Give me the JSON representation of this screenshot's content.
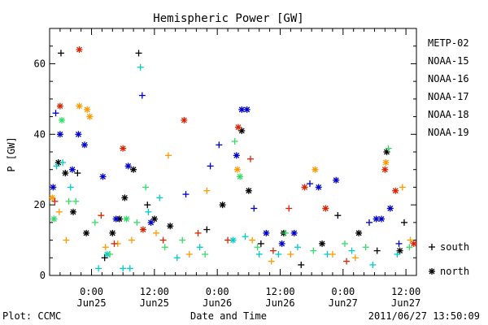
{
  "chart_data": {
    "type": "scatter",
    "title": "Hemispheric Power [GW]",
    "ylabel": "P [GW]",
    "xlabel": "Date and Time",
    "footer_left": "Plot: CCMC",
    "footer_right": "2011/06/27 13:50:09",
    "ylim": [
      0,
      70
    ],
    "yticks": [
      0,
      20,
      40,
      60
    ],
    "xlim": [
      "2011-06-24T16:00",
      "2011-06-27T14:00"
    ],
    "xticks": [
      {
        "t": "2011-06-25T00:00",
        "line1": "0:00",
        "line2": "Jun25"
      },
      {
        "t": "2011-06-25T12:00",
        "line1": "12:00",
        "line2": "Jun25"
      },
      {
        "t": "2011-06-26T00:00",
        "line1": "0:00",
        "line2": "Jun26"
      },
      {
        "t": "2011-06-26T12:00",
        "line1": "12:00",
        "line2": "Jun26"
      },
      {
        "t": "2011-06-27T00:00",
        "line1": "0:00",
        "line2": "Jun27"
      },
      {
        "t": "2011-06-27T12:00",
        "line1": "12:00",
        "line2": "Jun27"
      }
    ],
    "marker_legend": [
      {
        "marker": "plus",
        "label": "south"
      },
      {
        "marker": "star",
        "label": "north"
      }
    ],
    "series": [
      {
        "name": "METP-02",
        "color": "#000000",
        "points": [
          {
            "x": "2011-06-24T17:40",
            "y": 32,
            "m": "star"
          },
          {
            "x": "2011-06-24T18:10",
            "y": 63,
            "m": "plus"
          },
          {
            "x": "2011-06-24T19:00",
            "y": 29,
            "m": "star"
          },
          {
            "x": "2011-06-24T20:30",
            "y": 18,
            "m": "star"
          },
          {
            "x": "2011-06-24T21:20",
            "y": 29,
            "m": "plus"
          },
          {
            "x": "2011-06-24T23:00",
            "y": 12,
            "m": "star"
          },
          {
            "x": "2011-06-25T02:30",
            "y": 5,
            "m": "plus"
          },
          {
            "x": "2011-06-25T04:00",
            "y": 12,
            "m": "star"
          },
          {
            "x": "2011-06-25T05:20",
            "y": 16,
            "m": "star"
          },
          {
            "x": "2011-06-25T06:20",
            "y": 22,
            "m": "star"
          },
          {
            "x": "2011-06-25T08:00",
            "y": 30,
            "m": "star"
          },
          {
            "x": "2011-06-25T09:00",
            "y": 63,
            "m": "plus"
          },
          {
            "x": "2011-06-25T10:40",
            "y": 20,
            "m": "plus"
          },
          {
            "x": "2011-06-25T12:00",
            "y": 16,
            "m": "star"
          },
          {
            "x": "2011-06-25T15:00",
            "y": 14,
            "m": "star"
          },
          {
            "x": "2011-06-25T22:00",
            "y": 13,
            "m": "plus"
          },
          {
            "x": "2011-06-26T01:00",
            "y": 20,
            "m": "star"
          },
          {
            "x": "2011-06-26T04:40",
            "y": 41,
            "m": "star"
          },
          {
            "x": "2011-06-26T06:00",
            "y": 24,
            "m": "star"
          },
          {
            "x": "2011-06-26T08:20",
            "y": 9,
            "m": "plus"
          },
          {
            "x": "2011-06-26T12:40",
            "y": 12,
            "m": "star"
          },
          {
            "x": "2011-06-26T16:00",
            "y": 3,
            "m": "plus"
          },
          {
            "x": "2011-06-26T20:00",
            "y": 9,
            "m": "star"
          },
          {
            "x": "2011-06-26T23:00",
            "y": 17,
            "m": "plus"
          },
          {
            "x": "2011-06-27T03:00",
            "y": 12,
            "m": "star"
          },
          {
            "x": "2011-06-27T06:30",
            "y": 7,
            "m": "plus"
          },
          {
            "x": "2011-06-27T08:20",
            "y": 35,
            "m": "star"
          },
          {
            "x": "2011-06-27T10:50",
            "y": 7,
            "m": "star"
          },
          {
            "x": "2011-06-27T11:40",
            "y": 15,
            "m": "plus"
          }
        ]
      },
      {
        "name": "NOAA-15",
        "color": "#0000cc",
        "points": [
          {
            "x": "2011-06-24T16:40",
            "y": 25,
            "m": "star"
          },
          {
            "x": "2011-06-24T17:10",
            "y": 46,
            "m": "plus"
          },
          {
            "x": "2011-06-24T18:00",
            "y": 40,
            "m": "star"
          },
          {
            "x": "2011-06-24T20:20",
            "y": 30,
            "m": "star"
          },
          {
            "x": "2011-06-24T21:30",
            "y": 40,
            "m": "star"
          },
          {
            "x": "2011-06-24T22:40",
            "y": 37,
            "m": "star"
          },
          {
            "x": "2011-06-25T02:10",
            "y": 28,
            "m": "star"
          },
          {
            "x": "2011-06-25T04:40",
            "y": 16,
            "m": "star"
          },
          {
            "x": "2011-06-25T07:00",
            "y": 31,
            "m": "star"
          },
          {
            "x": "2011-06-25T09:40",
            "y": 51,
            "m": "plus"
          },
          {
            "x": "2011-06-25T11:20",
            "y": 15,
            "m": "star"
          },
          {
            "x": "2011-06-25T18:00",
            "y": 23,
            "m": "plus"
          },
          {
            "x": "2011-06-25T22:40",
            "y": 31,
            "m": "plus"
          },
          {
            "x": "2011-06-26T00:20",
            "y": 37,
            "m": "plus"
          },
          {
            "x": "2011-06-26T03:40",
            "y": 34,
            "m": "star"
          },
          {
            "x": "2011-06-26T04:40",
            "y": 47,
            "m": "star"
          },
          {
            "x": "2011-06-26T05:40",
            "y": 47,
            "m": "star"
          },
          {
            "x": "2011-06-26T07:00",
            "y": 19,
            "m": "plus"
          },
          {
            "x": "2011-06-26T09:20",
            "y": 12,
            "m": "star"
          },
          {
            "x": "2011-06-26T12:20",
            "y": 9,
            "m": "star"
          },
          {
            "x": "2011-06-26T14:40",
            "y": 12,
            "m": "star"
          },
          {
            "x": "2011-06-26T17:40",
            "y": 26,
            "m": "plus"
          },
          {
            "x": "2011-06-26T19:20",
            "y": 25,
            "m": "star"
          },
          {
            "x": "2011-06-26T22:40",
            "y": 27,
            "m": "star"
          },
          {
            "x": "2011-06-27T05:00",
            "y": 15,
            "m": "plus"
          },
          {
            "x": "2011-06-27T06:20",
            "y": 16,
            "m": "star"
          },
          {
            "x": "2011-06-27T07:20",
            "y": 16,
            "m": "star"
          },
          {
            "x": "2011-06-27T09:00",
            "y": 19,
            "m": "star"
          },
          {
            "x": "2011-06-27T10:40",
            "y": 9,
            "m": "plus"
          }
        ]
      },
      {
        "name": "NOAA-16",
        "color": "#00cccc",
        "points": [
          {
            "x": "2011-06-24T17:20",
            "y": 31,
            "m": "plus"
          },
          {
            "x": "2011-06-24T18:30",
            "y": 32,
            "m": "plus"
          },
          {
            "x": "2011-06-24T20:00",
            "y": 25,
            "m": "plus"
          },
          {
            "x": "2011-06-25T01:20",
            "y": 2,
            "m": "plus"
          },
          {
            "x": "2011-06-25T03:00",
            "y": 6,
            "m": "star"
          },
          {
            "x": "2011-06-25T06:00",
            "y": 2,
            "m": "plus"
          },
          {
            "x": "2011-06-25T07:20",
            "y": 2,
            "m": "plus"
          },
          {
            "x": "2011-06-25T09:20",
            "y": 59,
            "m": "plus"
          },
          {
            "x": "2011-06-25T10:50",
            "y": 18,
            "m": "plus"
          },
          {
            "x": "2011-06-25T13:00",
            "y": 22,
            "m": "plus"
          },
          {
            "x": "2011-06-25T16:20",
            "y": 5,
            "m": "plus"
          },
          {
            "x": "2011-06-25T20:40",
            "y": 8,
            "m": "plus"
          },
          {
            "x": "2011-06-26T03:00",
            "y": 10,
            "m": "star"
          },
          {
            "x": "2011-06-26T05:20",
            "y": 11,
            "m": "plus"
          },
          {
            "x": "2011-06-26T08:00",
            "y": 6,
            "m": "plus"
          },
          {
            "x": "2011-06-26T11:40",
            "y": 6,
            "m": "plus"
          },
          {
            "x": "2011-06-26T15:20",
            "y": 8,
            "m": "plus"
          },
          {
            "x": "2011-06-26T21:00",
            "y": 6,
            "m": "plus"
          },
          {
            "x": "2011-06-27T01:40",
            "y": 7,
            "m": "plus"
          },
          {
            "x": "2011-06-27T05:40",
            "y": 3,
            "m": "plus"
          },
          {
            "x": "2011-06-27T10:20",
            "y": 6,
            "m": "plus"
          }
        ]
      },
      {
        "name": "NOAA-17",
        "color": "#33dd66",
        "points": [
          {
            "x": "2011-06-24T16:50",
            "y": 16,
            "m": "star"
          },
          {
            "x": "2011-06-24T18:20",
            "y": 44,
            "m": "star"
          },
          {
            "x": "2011-06-24T19:40",
            "y": 21,
            "m": "plus"
          },
          {
            "x": "2011-06-24T21:00",
            "y": 21,
            "m": "plus"
          },
          {
            "x": "2011-06-25T00:40",
            "y": 15,
            "m": "plus"
          },
          {
            "x": "2011-06-25T03:30",
            "y": 6,
            "m": "plus"
          },
          {
            "x": "2011-06-25T06:40",
            "y": 16,
            "m": "star"
          },
          {
            "x": "2011-06-25T08:40",
            "y": 15,
            "m": "plus"
          },
          {
            "x": "2011-06-25T10:20",
            "y": 25,
            "m": "plus"
          },
          {
            "x": "2011-06-25T14:00",
            "y": 8,
            "m": "plus"
          },
          {
            "x": "2011-06-25T17:20",
            "y": 10,
            "m": "plus"
          },
          {
            "x": "2011-06-25T21:40",
            "y": 6,
            "m": "plus"
          },
          {
            "x": "2011-06-26T03:20",
            "y": 38,
            "m": "plus"
          },
          {
            "x": "2011-06-26T04:20",
            "y": 28,
            "m": "star"
          },
          {
            "x": "2011-06-26T07:40",
            "y": 8,
            "m": "plus"
          },
          {
            "x": "2011-06-26T13:00",
            "y": 12,
            "m": "plus"
          },
          {
            "x": "2011-06-26T18:20",
            "y": 7,
            "m": "plus"
          },
          {
            "x": "2011-06-27T00:20",
            "y": 9,
            "m": "plus"
          },
          {
            "x": "2011-06-27T04:20",
            "y": 8,
            "m": "plus"
          },
          {
            "x": "2011-06-27T08:40",
            "y": 36,
            "m": "plus"
          },
          {
            "x": "2011-06-27T12:40",
            "y": 8,
            "m": "plus"
          }
        ]
      },
      {
        "name": "NOAA-18",
        "color": "#ff9900",
        "points": [
          {
            "x": "2011-06-24T16:30",
            "y": 22,
            "m": "star"
          },
          {
            "x": "2011-06-24T17:50",
            "y": 18,
            "m": "plus"
          },
          {
            "x": "2011-06-24T19:10",
            "y": 10,
            "m": "plus"
          },
          {
            "x": "2011-06-24T21:40",
            "y": 48,
            "m": "star"
          },
          {
            "x": "2011-06-24T23:10",
            "y": 47,
            "m": "star"
          },
          {
            "x": "2011-06-24T23:40",
            "y": 45,
            "m": "star"
          },
          {
            "x": "2011-06-25T02:40",
            "y": 8,
            "m": "plus"
          },
          {
            "x": "2011-06-25T05:00",
            "y": 9,
            "m": "plus"
          },
          {
            "x": "2011-06-25T07:40",
            "y": 10,
            "m": "plus"
          },
          {
            "x": "2011-06-25T12:20",
            "y": 12,
            "m": "plus"
          },
          {
            "x": "2011-06-25T14:40",
            "y": 34,
            "m": "plus"
          },
          {
            "x": "2011-06-25T18:40",
            "y": 6,
            "m": "plus"
          },
          {
            "x": "2011-06-25T22:00",
            "y": 24,
            "m": "plus"
          },
          {
            "x": "2011-06-26T03:50",
            "y": 30,
            "m": "star"
          },
          {
            "x": "2011-06-26T06:40",
            "y": 10,
            "m": "plus"
          },
          {
            "x": "2011-06-26T10:20",
            "y": 4,
            "m": "plus"
          },
          {
            "x": "2011-06-26T14:00",
            "y": 6,
            "m": "plus"
          },
          {
            "x": "2011-06-26T18:40",
            "y": 30,
            "m": "star"
          },
          {
            "x": "2011-06-26T22:00",
            "y": 6,
            "m": "plus"
          },
          {
            "x": "2011-06-27T02:20",
            "y": 5,
            "m": "plus"
          },
          {
            "x": "2011-06-27T08:10",
            "y": 32,
            "m": "star"
          },
          {
            "x": "2011-06-27T11:20",
            "y": 25,
            "m": "plus"
          },
          {
            "x": "2011-06-27T12:50",
            "y": 10,
            "m": "plus"
          }
        ]
      },
      {
        "name": "NOAA-19",
        "color": "#dd2200",
        "points": [
          {
            "x": "2011-06-24T17:00",
            "y": 21,
            "m": "plus"
          },
          {
            "x": "2011-06-24T18:00",
            "y": 48,
            "m": "star"
          },
          {
            "x": "2011-06-24T21:40",
            "y": 64,
            "m": "star"
          },
          {
            "x": "2011-06-25T01:50",
            "y": 17,
            "m": "plus"
          },
          {
            "x": "2011-06-25T04:20",
            "y": 9,
            "m": "plus"
          },
          {
            "x": "2011-06-25T06:00",
            "y": 36,
            "m": "star"
          },
          {
            "x": "2011-06-25T09:50",
            "y": 13,
            "m": "star"
          },
          {
            "x": "2011-06-25T13:40",
            "y": 10,
            "m": "plus"
          },
          {
            "x": "2011-06-25T17:40",
            "y": 44,
            "m": "star"
          },
          {
            "x": "2011-06-25T20:20",
            "y": 12,
            "m": "plus"
          },
          {
            "x": "2011-06-26T02:00",
            "y": 10,
            "m": "plus"
          },
          {
            "x": "2011-06-26T04:00",
            "y": 42,
            "m": "star"
          },
          {
            "x": "2011-06-26T06:20",
            "y": 33,
            "m": "plus"
          },
          {
            "x": "2011-06-26T10:40",
            "y": 7,
            "m": "plus"
          },
          {
            "x": "2011-06-26T13:40",
            "y": 19,
            "m": "plus"
          },
          {
            "x": "2011-06-26T16:40",
            "y": 25,
            "m": "star"
          },
          {
            "x": "2011-06-26T20:40",
            "y": 19,
            "m": "star"
          },
          {
            "x": "2011-06-27T00:40",
            "y": 4,
            "m": "plus"
          },
          {
            "x": "2011-06-27T08:00",
            "y": 30,
            "m": "star"
          },
          {
            "x": "2011-06-27T10:00",
            "y": 24,
            "m": "star"
          },
          {
            "x": "2011-06-27T13:30",
            "y": 9,
            "m": "star"
          }
        ]
      }
    ]
  }
}
